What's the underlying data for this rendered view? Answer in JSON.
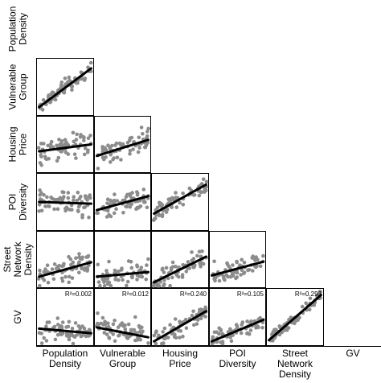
{
  "chart_data": {
    "type": "scatter",
    "layout": "lower-triangular scatterplot matrix with linear fit lines",
    "variables": [
      {
        "row_label": [
          "Population",
          "Density"
        ],
        "col_label": [
          "Population",
          "Density"
        ]
      },
      {
        "row_label": [
          "Vulnerable",
          "Group"
        ],
        "col_label": [
          "Vulnerable",
          "Group"
        ]
      },
      {
        "row_label": [
          "Housing",
          "Price"
        ],
        "col_label": [
          "Housing",
          "Price"
        ]
      },
      {
        "row_label": [
          "POI",
          "Diversity"
        ],
        "col_label": [
          "POI",
          "Diversity"
        ]
      },
      {
        "row_label": [
          "Street",
          "Network",
          "Density"
        ],
        "col_label": [
          "Street",
          "Network",
          "Density"
        ]
      },
      {
        "row_label": [
          "GV"
        ],
        "col_label": [
          "GV"
        ]
      }
    ],
    "point_color": "#8c8c8c",
    "line_color": "#000000",
    "panels": [
      {
        "row": 1,
        "col": 0,
        "fit": [
          0.05,
          0.15,
          0.95,
          0.82
        ],
        "spread": 0.12,
        "r2": ""
      },
      {
        "row": 2,
        "col": 0,
        "fit": [
          0.05,
          0.38,
          0.95,
          0.5
        ],
        "spread": 0.22,
        "r2": ""
      },
      {
        "row": 2,
        "col": 1,
        "fit": [
          0.05,
          0.3,
          0.95,
          0.58
        ],
        "spread": 0.2,
        "r2": ""
      },
      {
        "row": 3,
        "col": 0,
        "fit": [
          0.05,
          0.5,
          0.95,
          0.47
        ],
        "spread": 0.2,
        "r2": ""
      },
      {
        "row": 3,
        "col": 1,
        "fit": [
          0.05,
          0.36,
          0.95,
          0.6
        ],
        "spread": 0.2,
        "r2": ""
      },
      {
        "row": 3,
        "col": 2,
        "fit": [
          0.05,
          0.3,
          0.95,
          0.8
        ],
        "spread": 0.14,
        "r2": ""
      },
      {
        "row": 4,
        "col": 0,
        "fit": [
          0.05,
          0.2,
          0.95,
          0.45
        ],
        "spread": 0.2,
        "r2": ""
      },
      {
        "row": 4,
        "col": 1,
        "fit": [
          0.05,
          0.2,
          0.95,
          0.28
        ],
        "spread": 0.2,
        "r2": ""
      },
      {
        "row": 4,
        "col": 2,
        "fit": [
          0.05,
          0.1,
          0.95,
          0.55
        ],
        "spread": 0.18,
        "r2": ""
      },
      {
        "row": 4,
        "col": 3,
        "fit": [
          0.05,
          0.22,
          0.95,
          0.46
        ],
        "spread": 0.16,
        "r2": ""
      },
      {
        "row": 5,
        "col": 0,
        "fit": [
          0.05,
          0.3,
          0.95,
          0.22
        ],
        "spread": 0.2,
        "r2": "R²=0.002"
      },
      {
        "row": 5,
        "col": 1,
        "fit": [
          0.05,
          0.32,
          0.95,
          0.15
        ],
        "spread": 0.2,
        "r2": "R²=0.012"
      },
      {
        "row": 5,
        "col": 2,
        "fit": [
          0.05,
          0.08,
          0.95,
          0.6
        ],
        "spread": 0.16,
        "r2": "R²=0.240"
      },
      {
        "row": 5,
        "col": 3,
        "fit": [
          0.05,
          0.08,
          0.95,
          0.45
        ],
        "spread": 0.15,
        "r2": "R²=0.105"
      },
      {
        "row": 5,
        "col": 4,
        "fit": [
          0.05,
          0.1,
          0.95,
          0.88
        ],
        "spread": 0.1,
        "r2": "R²=0.293"
      }
    ]
  }
}
